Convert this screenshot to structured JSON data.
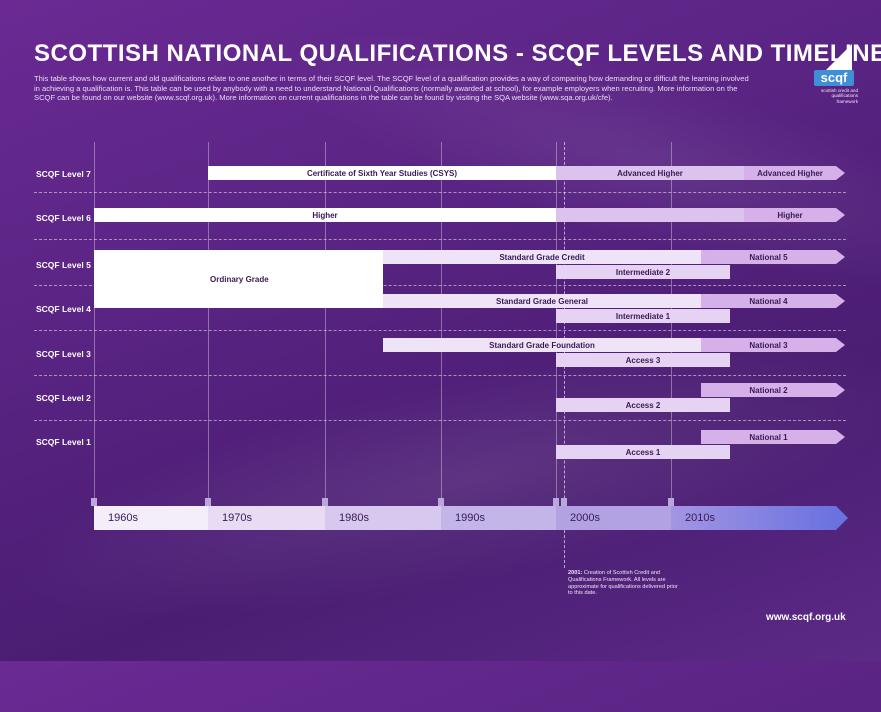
{
  "header": {
    "title": "SCOTTISH NATIONAL QUALIFICATIONS - SCQF LEVELS AND TIMELINES",
    "intro": "This table shows how current and old qualifications relate to one another in terms of their SCQF level. The SCQF level of a qualification provides a way of comparing how demanding or difficult the learning involved in achieving a qualification is. This table can be used by anybody with a need to understand National Qualifications (normally awarded at school), for example employers when recruiting. More information on the SCQF can be found on our website (www.scqf.org.uk). More information on current qualifications in the table can be found by visiting the SQA website (www.sqa.org.uk/cfe)."
  },
  "logo": {
    "word": "scqf",
    "tagline": "scottish credit and qualifications framework"
  },
  "levels": [
    "SCQF Level 7",
    "SCQF Level 6",
    "SCQF Level 5",
    "SCQF Level 4",
    "SCQF Level 3",
    "SCQF Level 2",
    "SCQF Level 1"
  ],
  "qualifications": {
    "csys": "Certificate of Sixth Year Studies (CSYS)",
    "advanced_higher_1": "Advanced Higher",
    "advanced_higher_2": "Advanced Higher",
    "higher_1": "Higher",
    "higher_2": "Higher",
    "ordinary_grade": "Ordinary Grade",
    "sg_credit": "Standard Grade Credit",
    "intermediate_2": "Intermediate 2",
    "national_5": "National 5",
    "sg_general": "Standard Grade General",
    "intermediate_1": "Intermediate 1",
    "national_4": "National 4",
    "sg_foundation": "Standard Grade Foundation",
    "access_3": "Access 3",
    "national_3": "National 3",
    "national_2": "National 2",
    "access_2": "Access 2",
    "national_1": "National 1",
    "access_1": "Access 1"
  },
  "timeline": {
    "decades": [
      "1960s",
      "1970s",
      "1980s",
      "1990s",
      "2000s",
      "2010s"
    ]
  },
  "note": {
    "bold": "2001:",
    "text": " Creation of Scottish Credit and Qualifications Framework. All levels are approximate for qualifications delivered prior to this date."
  },
  "footer": {
    "website": "www.scqf.org.uk"
  },
  "colors": {
    "background": "#5a2484",
    "bar_white": "#ffffff",
    "bar_light": "#efe4f7",
    "bar_lavender": "#dcc3ee",
    "bar_pink": "#d6b0e8",
    "timeline_end": "#6a72e0"
  }
}
